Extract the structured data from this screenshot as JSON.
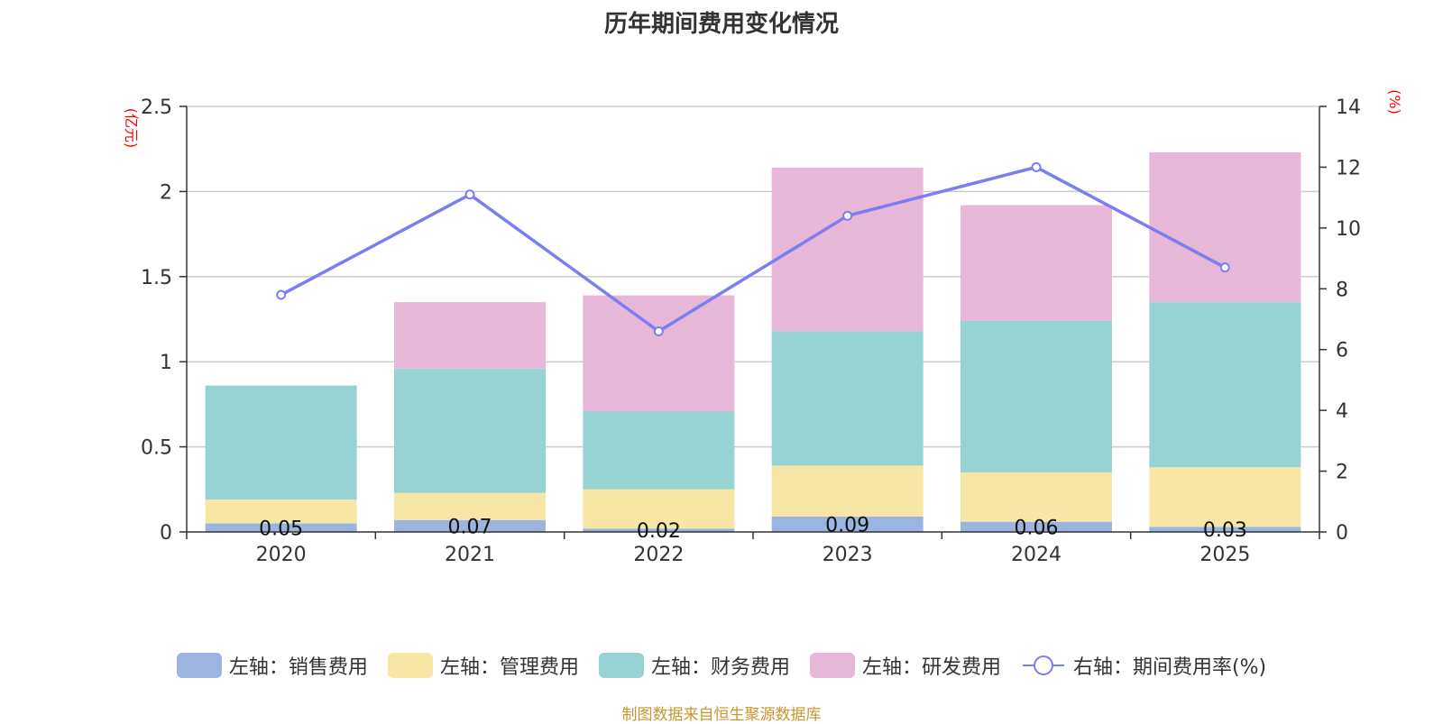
{
  "chart_data": {
    "type": "bar",
    "stacked": true,
    "title": "历年期间费用变化情况",
    "categories": [
      "2020",
      "2021",
      "2022",
      "2023",
      "2024",
      "2025"
    ],
    "series": [
      {
        "name": "左轴：销售费用",
        "axis": "left",
        "color": "#9bb5e0",
        "values": [
          0.05,
          0.07,
          0.02,
          0.09,
          0.06,
          0.03
        ],
        "labels": [
          "0.05",
          "0.07",
          "0.02",
          "0.09",
          "0.06",
          "0.03"
        ]
      },
      {
        "name": "左轴：管理费用",
        "axis": "left",
        "color": "#f7e6a6",
        "values": [
          0.14,
          0.16,
          0.23,
          0.3,
          0.29,
          0.35
        ]
      },
      {
        "name": "左轴：财务费用",
        "axis": "left",
        "color": "#97d3d3",
        "values": [
          0.67,
          0.73,
          0.46,
          0.79,
          0.89,
          0.97
        ]
      },
      {
        "name": "左轴：研发费用",
        "axis": "left",
        "color": "#e6b7d7",
        "values": [
          0.0,
          0.39,
          0.68,
          0.96,
          0.68,
          0.88
        ]
      }
    ],
    "line_series": {
      "name": "右轴：期间费用率(%)",
      "axis": "right",
      "color": "#7b7ef0",
      "values": [
        7.8,
        11.1,
        6.6,
        10.4,
        12.0,
        8.7
      ]
    },
    "left_axis": {
      "unit": "(亿元)",
      "ylim": [
        0,
        2.5
      ],
      "ticks": [
        "0",
        "0.5",
        "1",
        "1.5",
        "2",
        "2.5"
      ]
    },
    "right_axis": {
      "unit": "(%)",
      "ylim": [
        0,
        14
      ],
      "ticks": [
        "0",
        "2",
        "4",
        "6",
        "8",
        "10",
        "12",
        "14"
      ]
    },
    "grid": true,
    "legend_position": "bottom"
  },
  "source_text": "制图数据来自恒生聚源数据库"
}
